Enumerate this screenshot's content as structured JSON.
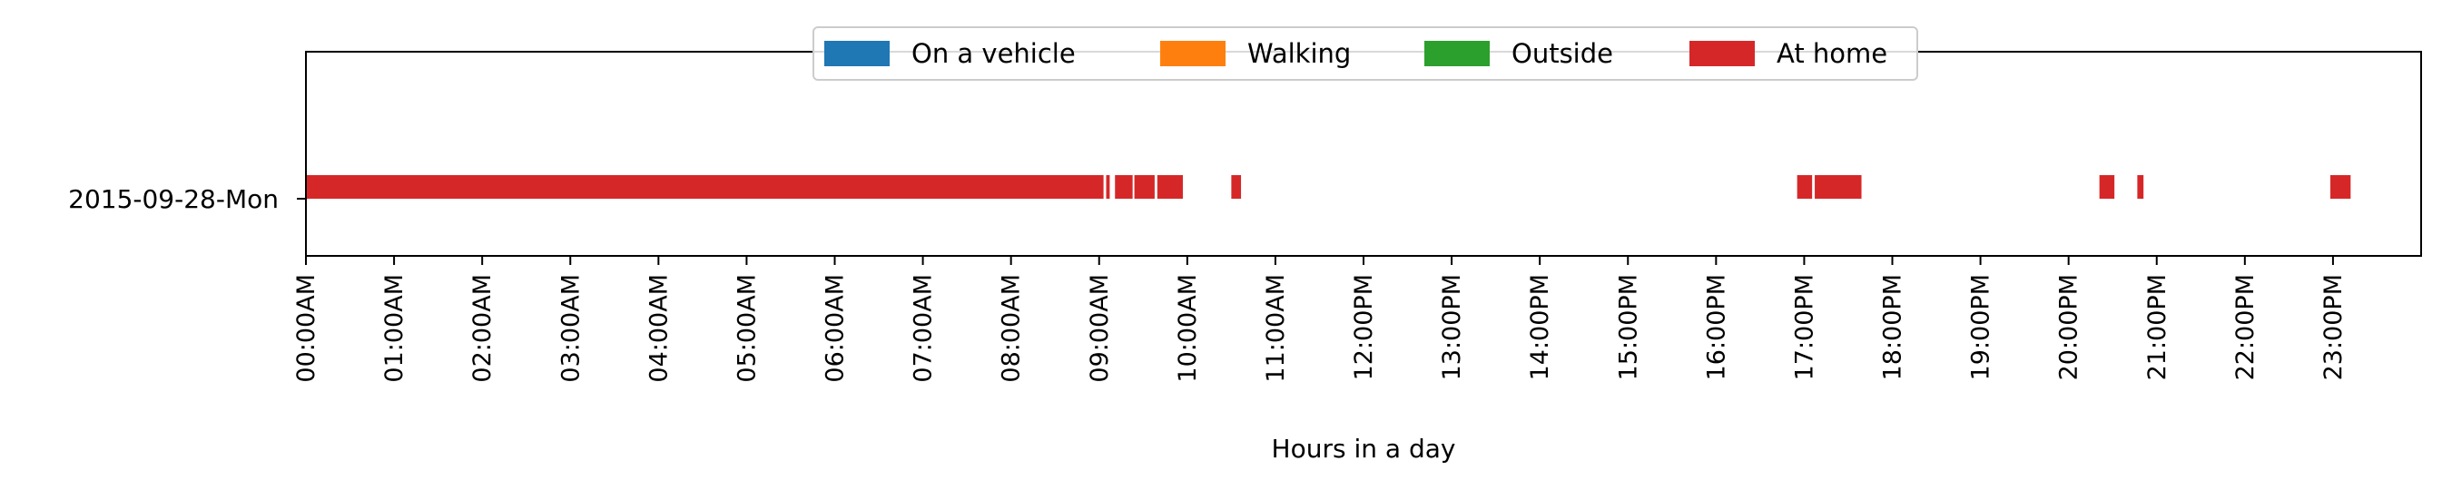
{
  "chart_data": {
    "type": "bar",
    "orientation": "horizontal",
    "title": "",
    "xlabel": "Hours in a day",
    "ylabel": "",
    "categories": [
      "2015-09-28-Mon"
    ],
    "xlim": [
      0,
      24
    ],
    "grid": false,
    "legend_position": "top-center",
    "x_ticks": [
      {
        "value": 0,
        "label": "00:00AM"
      },
      {
        "value": 1,
        "label": "01:00AM"
      },
      {
        "value": 2,
        "label": "02:00AM"
      },
      {
        "value": 3,
        "label": "03:00AM"
      },
      {
        "value": 4,
        "label": "04:00AM"
      },
      {
        "value": 5,
        "label": "05:00AM"
      },
      {
        "value": 6,
        "label": "06:00AM"
      },
      {
        "value": 7,
        "label": "07:00AM"
      },
      {
        "value": 8,
        "label": "08:00AM"
      },
      {
        "value": 9,
        "label": "09:00AM"
      },
      {
        "value": 10,
        "label": "10:00AM"
      },
      {
        "value": 11,
        "label": "11:00AM"
      },
      {
        "value": 12,
        "label": "12:00PM"
      },
      {
        "value": 13,
        "label": "13:00PM"
      },
      {
        "value": 14,
        "label": "14:00PM"
      },
      {
        "value": 15,
        "label": "15:00PM"
      },
      {
        "value": 16,
        "label": "16:00PM"
      },
      {
        "value": 17,
        "label": "17:00PM"
      },
      {
        "value": 18,
        "label": "18:00PM"
      },
      {
        "value": 19,
        "label": "19:00PM"
      },
      {
        "value": 20,
        "label": "20:00PM"
      },
      {
        "value": 21,
        "label": "21:00PM"
      },
      {
        "value": 22,
        "label": "22:00PM"
      },
      {
        "value": 23,
        "label": "23:00PM"
      }
    ],
    "series": [
      {
        "name": "On a vehicle",
        "color": "#1f77b4",
        "intervals": []
      },
      {
        "name": "Walking",
        "color": "#ff7f0e",
        "intervals": []
      },
      {
        "name": "Outside",
        "color": "#2ca02c",
        "intervals": []
      },
      {
        "name": "At home",
        "color": "#d62728",
        "intervals": [
          {
            "category": "2015-09-28-Mon",
            "start": 0.0,
            "end": 9.05
          },
          {
            "category": "2015-09-28-Mon",
            "start": 9.08,
            "end": 9.12
          },
          {
            "category": "2015-09-28-Mon",
            "start": 9.18,
            "end": 9.38
          },
          {
            "category": "2015-09-28-Mon",
            "start": 9.4,
            "end": 9.63
          },
          {
            "category": "2015-09-28-Mon",
            "start": 9.66,
            "end": 9.95
          },
          {
            "category": "2015-09-28-Mon",
            "start": 10.5,
            "end": 10.61
          },
          {
            "category": "2015-09-28-Mon",
            "start": 16.92,
            "end": 17.09
          },
          {
            "category": "2015-09-28-Mon",
            "start": 17.12,
            "end": 17.65
          },
          {
            "category": "2015-09-28-Mon",
            "start": 20.35,
            "end": 20.52
          },
          {
            "category": "2015-09-28-Mon",
            "start": 20.78,
            "end": 20.85
          },
          {
            "category": "2015-09-28-Mon",
            "start": 22.97,
            "end": 23.2
          }
        ]
      }
    ]
  }
}
